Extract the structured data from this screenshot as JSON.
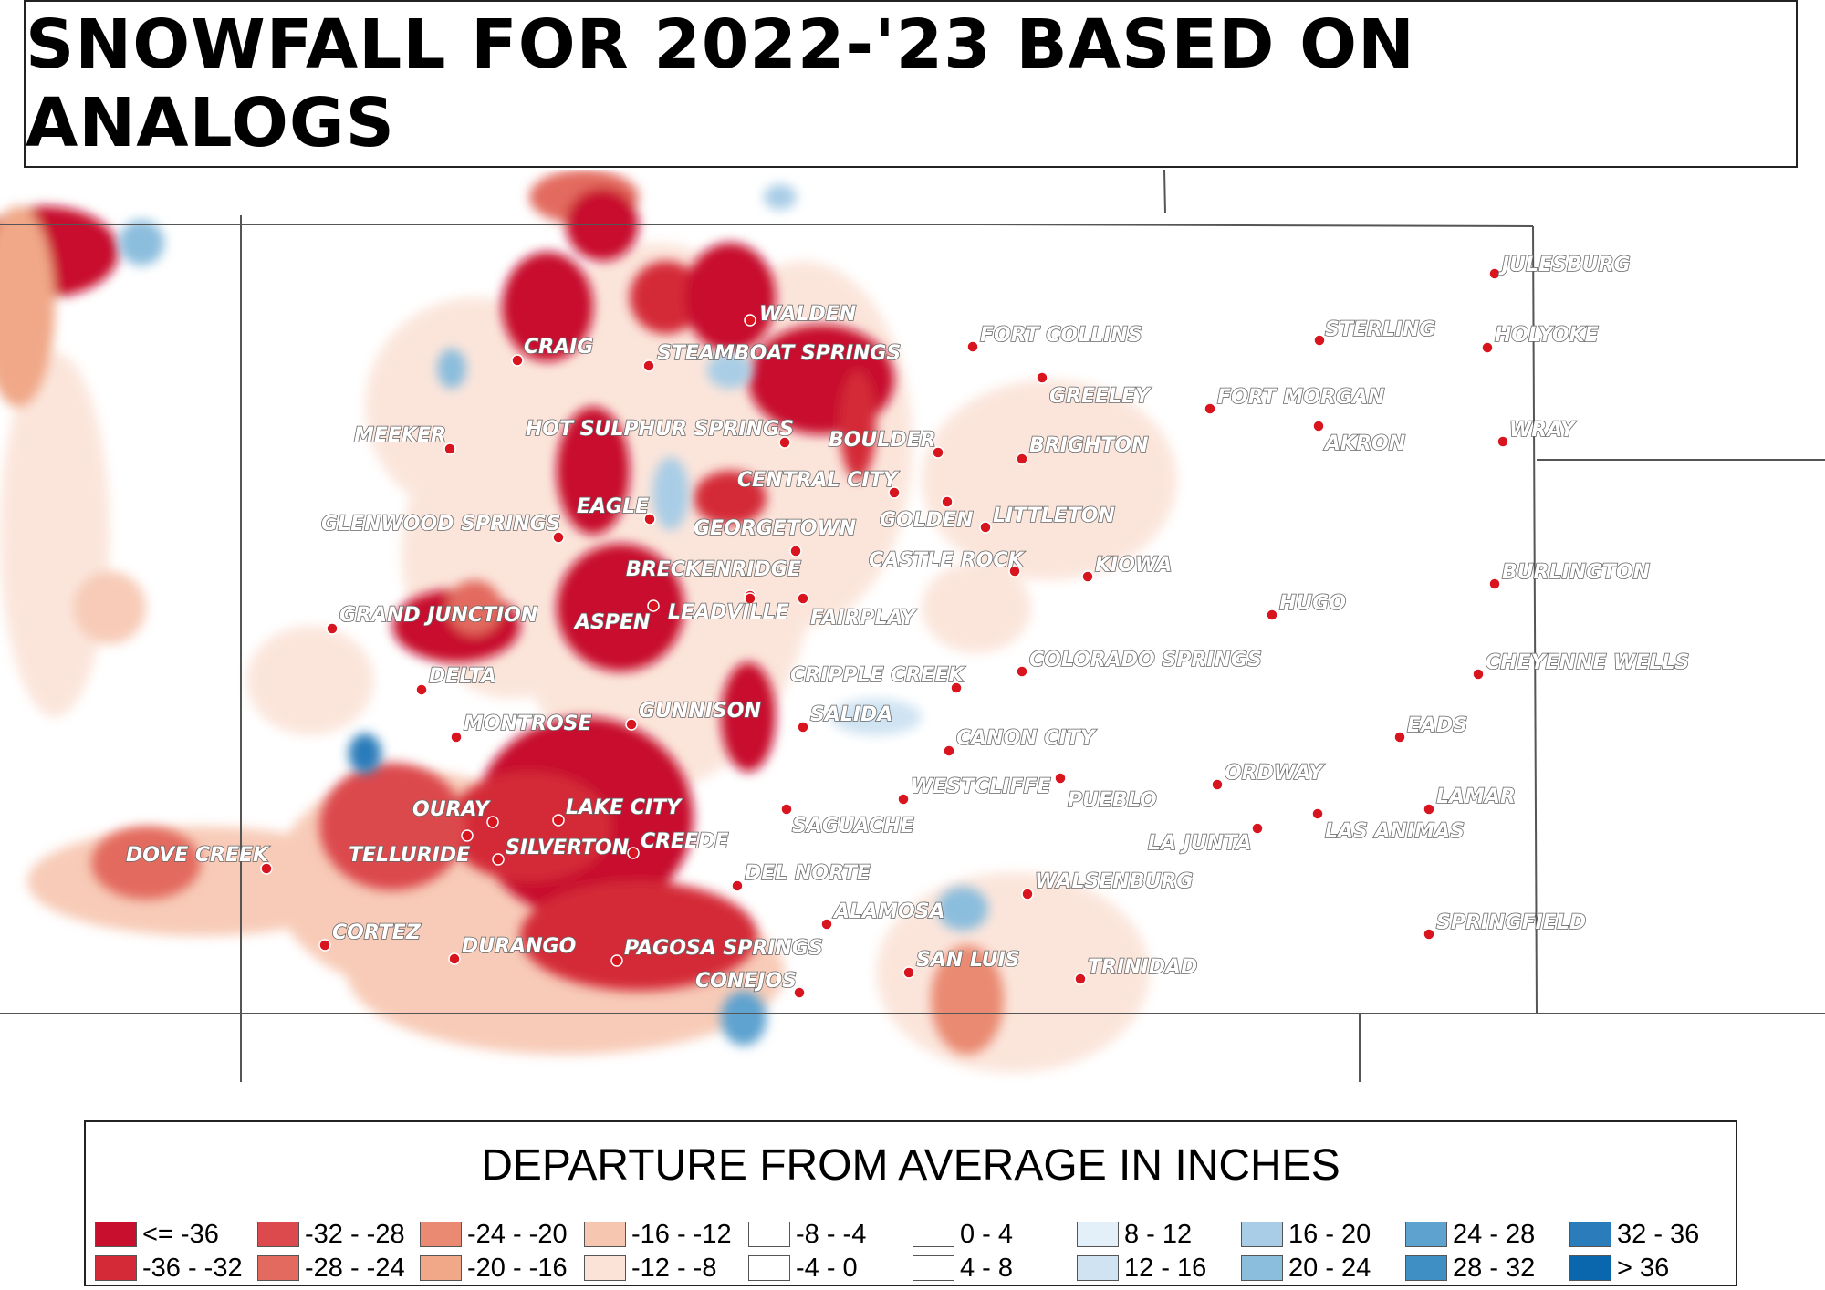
{
  "title": "SNOWFALL FOR 2022-'23 BASED ON ANALOGS",
  "legend": {
    "title": "DEPARTURE FROM AVERAGE IN INCHES",
    "items": [
      {
        "label": "<= -36",
        "color": "#c8102e"
      },
      {
        "label": "-36 - -32",
        "color": "#d42a38"
      },
      {
        "label": "-32 - -28",
        "color": "#dc4a4d"
      },
      {
        "label": "-28 - -24",
        "color": "#e36a5f"
      },
      {
        "label": "-24 - -20",
        "color": "#ea8a72"
      },
      {
        "label": "-20 - -16",
        "color": "#f0a888"
      },
      {
        "label": "-16 - -12",
        "color": "#f7c6b0"
      },
      {
        "label": "-12 - -8",
        "color": "#fbe3d8"
      },
      {
        "label": "-8 - -4",
        "color": "#ffffff"
      },
      {
        "label": "-4 - 0",
        "color": "#ffffff"
      },
      {
        "label": "0 - 4",
        "color": "#ffffff"
      },
      {
        "label": "4 - 8",
        "color": "#ffffff"
      },
      {
        "label": "8 - 12",
        "color": "#e4f0f9"
      },
      {
        "label": "12 - 16",
        "color": "#cfe3f2"
      },
      {
        "label": "16 - 20",
        "color": "#a9cde6"
      },
      {
        "label": "20 - 24",
        "color": "#8bbddd"
      },
      {
        "label": "24 - 28",
        "color": "#5ea3d0"
      },
      {
        "label": "28 - 32",
        "color": "#3f8fc5"
      },
      {
        "label": "32 - 36",
        "color": "#2a7cba"
      },
      {
        "label": "> 36",
        "color": "#0a66ad"
      }
    ]
  },
  "cities": [
    {
      "name": "JULESBURG"
    },
    {
      "name": "STERLING"
    },
    {
      "name": "HOLYOKE"
    },
    {
      "name": "WALDEN"
    },
    {
      "name": "FORT COLLINS"
    },
    {
      "name": "CRAIG"
    },
    {
      "name": "STEAMBOAT SPRINGS"
    },
    {
      "name": "GREELEY"
    },
    {
      "name": "FORT MORGAN"
    },
    {
      "name": "MEEKER"
    },
    {
      "name": "HOT SULPHUR SPRINGS"
    },
    {
      "name": "BOULDER"
    },
    {
      "name": "BRIGHTON"
    },
    {
      "name": "AKRON"
    },
    {
      "name": "WRAY"
    },
    {
      "name": "CENTRAL CITY"
    },
    {
      "name": "EAGLE"
    },
    {
      "name": "GLENWOOD SPRINGS"
    },
    {
      "name": "GEORGETOWN"
    },
    {
      "name": "GOLDEN"
    },
    {
      "name": "LITTLETON"
    },
    {
      "name": "CASTLE ROCK"
    },
    {
      "name": "BRECKENRIDGE"
    },
    {
      "name": "KIOWA"
    },
    {
      "name": "BURLINGTON"
    },
    {
      "name": "GRAND JUNCTION"
    },
    {
      "name": "ASPEN"
    },
    {
      "name": "LEADVILLE"
    },
    {
      "name": "FAIRPLAY"
    },
    {
      "name": "HUGO"
    },
    {
      "name": "DELTA"
    },
    {
      "name": "CRIPPLE CREEK"
    },
    {
      "name": "COLORADO SPRINGS"
    },
    {
      "name": "CHEYENNE WELLS"
    },
    {
      "name": "MONTROSE"
    },
    {
      "name": "GUNNISON"
    },
    {
      "name": "SALIDA"
    },
    {
      "name": "EADS"
    },
    {
      "name": "CANON CITY"
    },
    {
      "name": "ORDWAY"
    },
    {
      "name": "WESTCLIFFE"
    },
    {
      "name": "PUEBLO"
    },
    {
      "name": "LAMAR"
    },
    {
      "name": "OURAY"
    },
    {
      "name": "LAKE CITY"
    },
    {
      "name": "SAGUACHE"
    },
    {
      "name": "LA JUNTA"
    },
    {
      "name": "LAS ANIMAS"
    },
    {
      "name": "DOVE CREEK"
    },
    {
      "name": "TELLURIDE"
    },
    {
      "name": "SILVERTON"
    },
    {
      "name": "CREEDE"
    },
    {
      "name": "DEL NORTE"
    },
    {
      "name": "WALSENBURG"
    },
    {
      "name": "ALAMOSA"
    },
    {
      "name": "SPRINGFIELD"
    },
    {
      "name": "CORTEZ"
    },
    {
      "name": "DURANGO"
    },
    {
      "name": "PAGOSA SPRINGS"
    },
    {
      "name": "SAN LUIS"
    },
    {
      "name": "TRINIDAD"
    },
    {
      "name": "CONEJOS"
    }
  ]
}
